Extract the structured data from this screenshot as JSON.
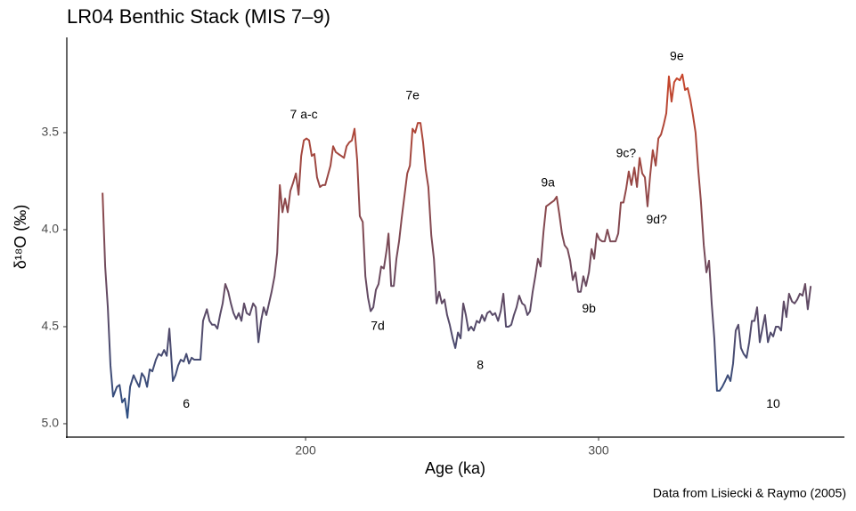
{
  "chart_data": {
    "type": "line",
    "title": "LR04 Benthic Stack (MIS 7–9)",
    "xlabel": "Age (ka)",
    "ylabel": "δ¹⁸O (‰)",
    "caption": "Data from Lisiecki & Raymo (2005)",
    "x": [
      130.7,
      131.6,
      132.5,
      133.4,
      134.3,
      135.6,
      136.5,
      137.4,
      138.3,
      139.2,
      140.1,
      141.3,
      142.2,
      143.2,
      144.1,
      145.0,
      145.9,
      146.8,
      147.7,
      148.9,
      149.8,
      150.8,
      151.7,
      152.6,
      153.5,
      154.7,
      155.6,
      156.5,
      157.4,
      158.4,
      159.3,
      160.2,
      161.1,
      162.0,
      164.1,
      165.0,
      166.3,
      167.2,
      168.1,
      169.0,
      169.9,
      170.8,
      171.7,
      172.6,
      173.6,
      174.5,
      175.4,
      176.3,
      177.2,
      178.1,
      179.0,
      179.9,
      180.9,
      182.1,
      183.0,
      183.9,
      184.8,
      185.7,
      186.6,
      187.5,
      188.4,
      189.4,
      190.3,
      191.2,
      192.1,
      193.0,
      193.9,
      194.8,
      195.7,
      196.7,
      197.6,
      198.5,
      199.4,
      200.3,
      201.2,
      202.1,
      203.0,
      203.9,
      204.9,
      205.8,
      206.7,
      207.6,
      208.5,
      209.4,
      210.3,
      211.2,
      212.2,
      213.1,
      214.0,
      214.9,
      215.8,
      216.7,
      217.6,
      218.5,
      219.5,
      220.4,
      221.3,
      222.2,
      223.1,
      224.0,
      224.9,
      225.8,
      226.7,
      227.7,
      228.3,
      229.2,
      230.1,
      231.0,
      231.9,
      232.8,
      233.7,
      234.7,
      235.6,
      236.5,
      237.4,
      238.3,
      239.2,
      240.1,
      241.0,
      241.9,
      242.9,
      243.8,
      244.7,
      245.6,
      246.5,
      247.4,
      248.3,
      249.2,
      250.2,
      251.1,
      252.0,
      252.9,
      253.8,
      254.7,
      255.6,
      256.5,
      257.4,
      258.4,
      259.3,
      260.2,
      261.1,
      262.0,
      262.9,
      263.8,
      264.7,
      265.7,
      266.6,
      267.5,
      268.4,
      269.3,
      270.2,
      271.1,
      272.0,
      272.9,
      273.9,
      274.8,
      275.7,
      276.6,
      277.5,
      278.4,
      279.3,
      280.2,
      281.2,
      282.1,
      283.0,
      283.9,
      284.8,
      285.7,
      286.6,
      287.5,
      288.4,
      289.4,
      290.3,
      291.2,
      292.1,
      293.0,
      293.9,
      294.8,
      295.7,
      296.7,
      297.6,
      298.5,
      299.4,
      300.3,
      301.2,
      302.1,
      303.0,
      304.0,
      304.9,
      305.8,
      306.7,
      307.6,
      308.5,
      309.4,
      310.3,
      311.2,
      312.2,
      313.1,
      314.0,
      314.9,
      315.8,
      316.7,
      317.6,
      318.5,
      319.5,
      320.4,
      321.3,
      322.2,
      323.1,
      324.0,
      324.9,
      325.8,
      326.7,
      327.7,
      328.6,
      329.5,
      330.4,
      331.3,
      332.2,
      333.1,
      334.0,
      334.9,
      335.9,
      336.8,
      337.7,
      338.6,
      339.5,
      340.4,
      341.3,
      342.2,
      343.2,
      344.1,
      345.0,
      345.9,
      346.8,
      347.7,
      348.6,
      349.5,
      350.5,
      351.4,
      352.3,
      353.2,
      354.1,
      355.0,
      355.9,
      356.8,
      357.8,
      358.7,
      359.6,
      360.5,
      361.4,
      362.3,
      363.2,
      364.1,
      365.0,
      366.0,
      366.9,
      367.8,
      368.7,
      369.6,
      370.5,
      371.4,
      372.4
    ],
    "values": [
      3.81,
      4.19,
      4.4,
      4.7,
      4.86,
      4.81,
      4.8,
      4.89,
      4.87,
      4.97,
      4.81,
      4.75,
      4.78,
      4.81,
      4.74,
      4.76,
      4.81,
      4.72,
      4.73,
      4.67,
      4.64,
      4.65,
      4.62,
      4.65,
      4.51,
      4.78,
      4.75,
      4.7,
      4.67,
      4.68,
      4.64,
      4.69,
      4.66,
      4.67,
      4.67,
      4.47,
      4.41,
      4.47,
      4.49,
      4.49,
      4.51,
      4.44,
      4.38,
      4.28,
      4.32,
      4.38,
      4.43,
      4.46,
      4.43,
      4.47,
      4.38,
      4.43,
      4.44,
      4.38,
      4.4,
      4.58,
      4.47,
      4.4,
      4.44,
      4.38,
      4.32,
      4.24,
      4.12,
      3.77,
      3.91,
      3.84,
      3.91,
      3.8,
      3.76,
      3.71,
      3.82,
      3.62,
      3.54,
      3.53,
      3.54,
      3.62,
      3.61,
      3.73,
      3.78,
      3.77,
      3.77,
      3.72,
      3.67,
      3.57,
      3.6,
      3.61,
      3.62,
      3.63,
      3.57,
      3.55,
      3.54,
      3.48,
      3.64,
      3.93,
      3.96,
      4.24,
      4.35,
      4.42,
      4.4,
      4.31,
      4.28,
      4.19,
      4.2,
      4.1,
      4.02,
      4.29,
      4.29,
      4.15,
      4.06,
      3.94,
      3.83,
      3.71,
      3.67,
      3.48,
      3.5,
      3.45,
      3.45,
      3.55,
      3.69,
      3.78,
      4.03,
      4.15,
      4.38,
      4.32,
      4.38,
      4.36,
      4.44,
      4.49,
      4.56,
      4.61,
      4.53,
      4.56,
      4.38,
      4.44,
      4.52,
      4.5,
      4.52,
      4.47,
      4.48,
      4.44,
      4.47,
      4.43,
      4.42,
      4.44,
      4.43,
      4.47,
      4.42,
      4.33,
      4.5,
      4.5,
      4.49,
      4.44,
      4.4,
      4.34,
      4.38,
      4.39,
      4.44,
      4.42,
      4.32,
      4.24,
      4.15,
      4.19,
      4.01,
      3.88,
      3.87,
      3.86,
      3.85,
      3.83,
      3.92,
      4.02,
      4.08,
      4.1,
      4.16,
      4.26,
      4.22,
      4.32,
      4.32,
      4.24,
      4.29,
      4.22,
      4.1,
      4.15,
      4.02,
      4.05,
      4.06,
      4.06,
      4.0,
      4.06,
      4.06,
      4.06,
      4.02,
      3.86,
      3.86,
      3.79,
      3.7,
      3.77,
      3.68,
      3.78,
      3.63,
      3.71,
      3.73,
      3.88,
      3.72,
      3.59,
      3.67,
      3.53,
      3.51,
      3.46,
      3.4,
      3.21,
      3.34,
      3.24,
      3.22,
      3.23,
      3.2,
      3.28,
      3.27,
      3.33,
      3.41,
      3.5,
      3.69,
      3.85,
      4.08,
      4.22,
      4.16,
      4.38,
      4.56,
      4.83,
      4.83,
      4.81,
      4.78,
      4.75,
      4.78,
      4.69,
      4.52,
      4.49,
      4.61,
      4.64,
      4.66,
      4.58,
      4.47,
      4.47,
      4.4,
      4.58,
      4.51,
      4.44,
      4.58,
      4.53,
      4.55,
      4.5,
      4.5,
      4.52,
      4.37,
      4.45,
      4.33,
      4.37,
      4.38,
      4.36,
      4.33,
      4.34,
      4.28,
      4.41,
      4.29
    ],
    "color_scale": [
      "#c8462b",
      "#2b4d82"
    ],
    "xlim": [
      118.5,
      383.9
    ],
    "ylim": [
      5.069,
      3.009
    ],
    "xticks": [
      200,
      300
    ],
    "yticks": [
      3.5,
      {
        "value": 4,
        "label": "4.0"
      },
      4.5,
      {
        "value": 5,
        "label": "5.0"
      }
    ],
    "annotations": [
      {
        "text": "6",
        "x": 159.3,
        "y": 4.9
      },
      {
        "text": "7 a-c",
        "x": 199.4,
        "y": 3.41
      },
      {
        "text": "7e",
        "x": 236.5,
        "y": 3.31
      },
      {
        "text": "7d",
        "x": 224.6,
        "y": 4.5
      },
      {
        "text": "8",
        "x": 259.6,
        "y": 4.7
      },
      {
        "text": "9a",
        "x": 282.7,
        "y": 3.76
      },
      {
        "text": "9b",
        "x": 296.7,
        "y": 4.41
      },
      {
        "text": "9c?",
        "x": 309.4,
        "y": 3.61
      },
      {
        "text": "9d?",
        "x": 319.8,
        "y": 3.95
      },
      {
        "text": "9e",
        "x": 326.7,
        "y": 3.11
      },
      {
        "text": "10",
        "x": 359.6,
        "y": 4.9
      }
    ]
  }
}
